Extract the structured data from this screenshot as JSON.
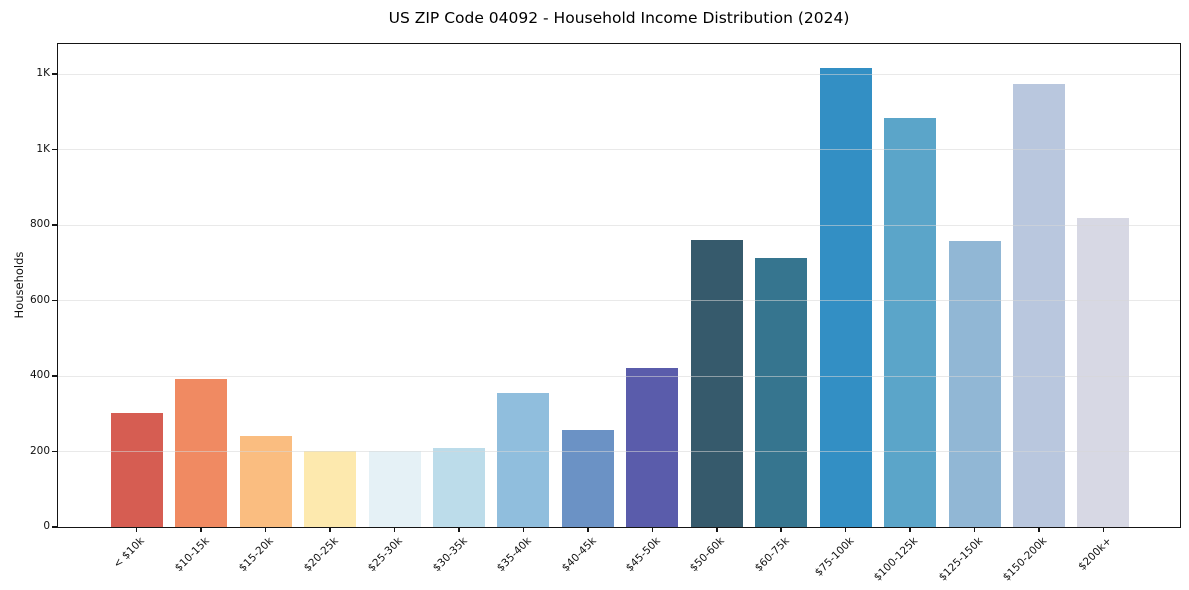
{
  "chart_data": {
    "type": "bar",
    "title": "US ZIP Code 04092 - Household Income Distribution (2024)",
    "xlabel": "",
    "ylabel": "Households",
    "categories": [
      "< $10k",
      "$10-15k",
      "$15-20k",
      "$20-25k",
      "$25-30k",
      "$30-35k",
      "$35-40k",
      "$40-45k",
      "$45-50k",
      "$50-60k",
      "$60-75k",
      "$75-100k",
      "$100-125k",
      "$125-150k",
      "$150-200k",
      "$200k+"
    ],
    "values": [
      303,
      393,
      241,
      202,
      201,
      210,
      354,
      257,
      421,
      761,
      713,
      1217,
      1085,
      758,
      1174,
      818
    ],
    "bar_colors": [
      "#d65d52",
      "#f08a62",
      "#fabd80",
      "#fde9ae",
      "#e5f1f6",
      "#bcdcea",
      "#90bedd",
      "#6b92c5",
      "#5a5cab",
      "#365a6c",
      "#36758f",
      "#338fc4",
      "#5ba5c9",
      "#91b7d5",
      "#b9c7de",
      "#d7d8e4"
    ],
    "ylim": [
      0,
      1280
    ],
    "yticks": {
      "values": [
        0,
        200,
        400,
        600,
        800,
        1000,
        1200
      ],
      "labels": [
        "0",
        "200",
        "400",
        "600",
        "800",
        "1K",
        "1K"
      ]
    },
    "grid": "horizontal",
    "legend": "none",
    "x_tick_rotation": 45
  }
}
